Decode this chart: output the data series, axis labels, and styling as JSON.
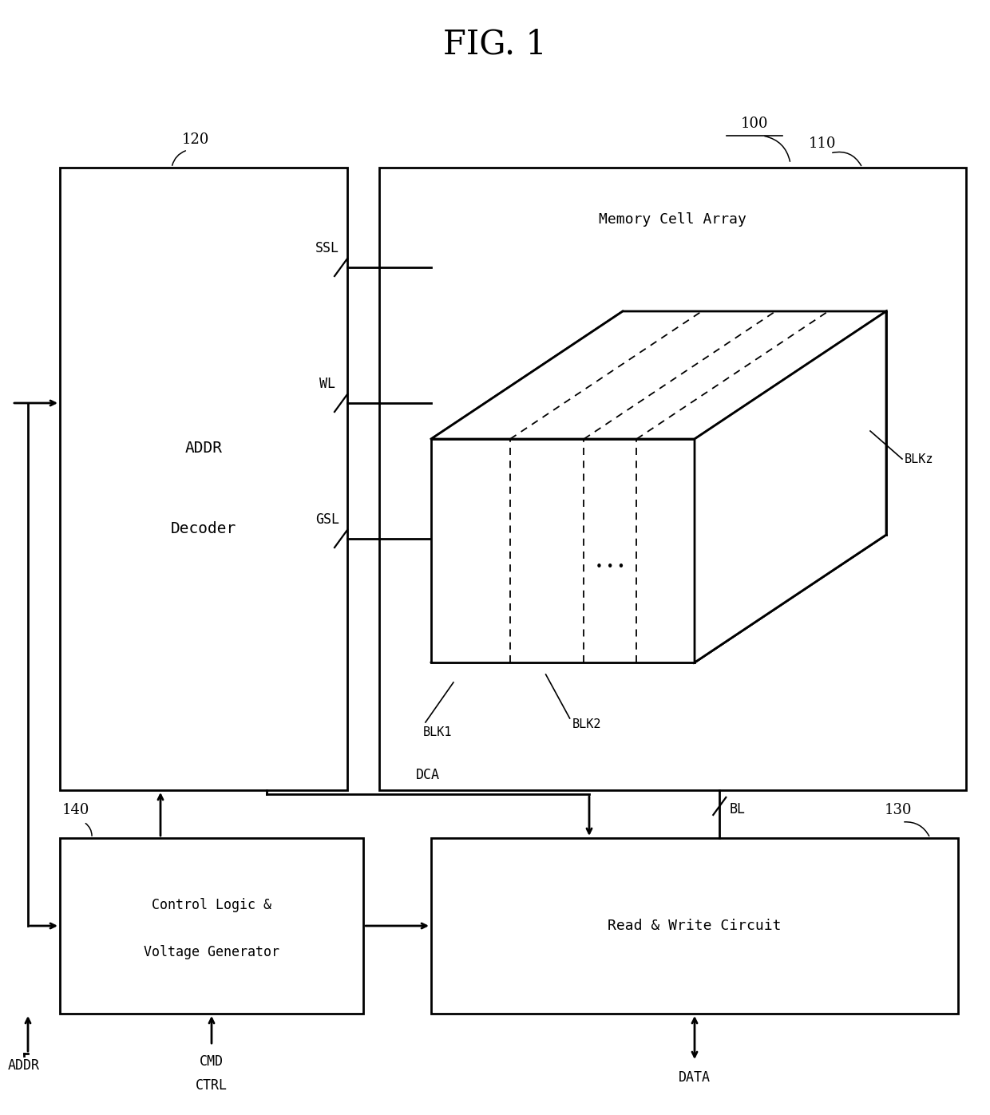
{
  "title": "FIG. 1",
  "bg": "#ffffff",
  "fw": 12.4,
  "fh": 13.97,
  "dpi": 100,
  "ref100": "100",
  "ref110": "110",
  "ref120": "120",
  "ref130": "130",
  "ref140": "140",
  "mca_text": "Memory Cell Array",
  "addr_dec_line1": "ADDR",
  "addr_dec_line2": "Decoder",
  "ctrl_logic_line1": "Control Logic &",
  "ctrl_logic_line2": "Voltage Generator",
  "rw_text": "Read & Write Circuit",
  "ssl": "SSL",
  "wl": "WL",
  "gsl": "GSL",
  "dca": "DCA",
  "bl": "BL",
  "addr": "ADDR",
  "cmd": "CMD",
  "ctrl": "CTRL",
  "data_lbl": "DATA",
  "blk1": "BLK1",
  "blk2": "BLK2",
  "blkz": "BLKz",
  "lw": 2.0,
  "lw_thin": 1.3
}
